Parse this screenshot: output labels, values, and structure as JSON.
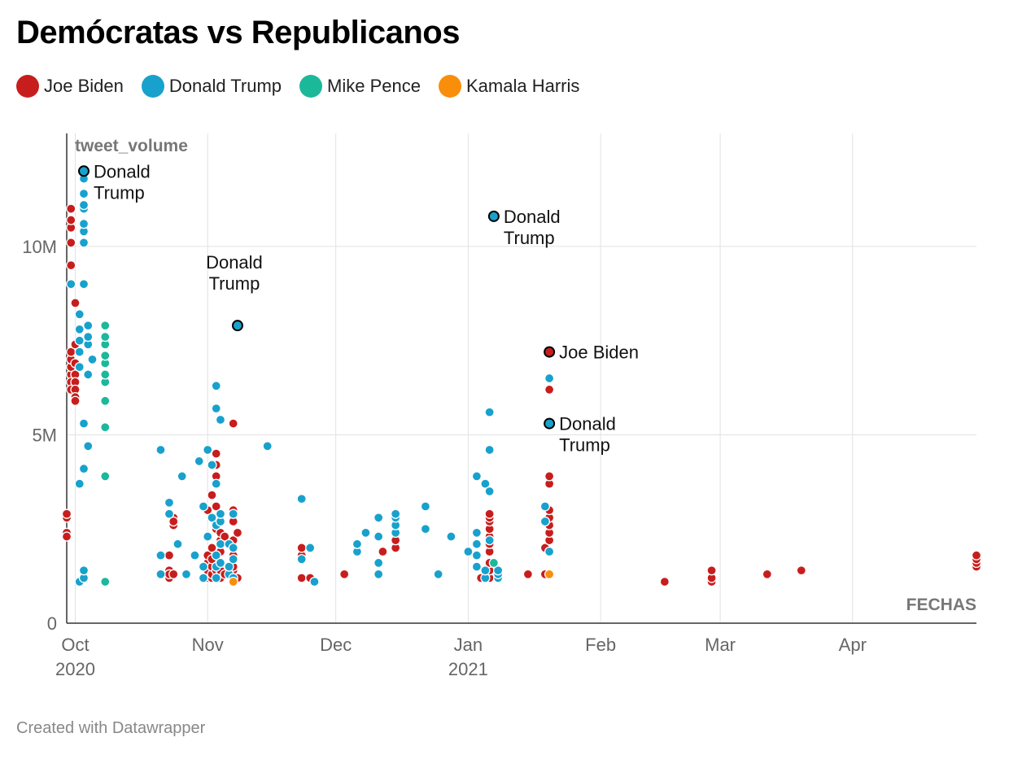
{
  "title": "Demócratas vs Republicanos",
  "footer": "Created with Datawrapper",
  "chart_data": {
    "type": "scatter",
    "xlabel": "FECHAS",
    "ylabel": "tweet_volume",
    "xlim": [
      "2020-09-29",
      "2021-04-30"
    ],
    "ylim": [
      0,
      13000000
    ],
    "grid": true,
    "legend_position": "top-left",
    "x_ticks": [
      {
        "date": "2020-10-01",
        "label": "Oct",
        "sub": "2020"
      },
      {
        "date": "2020-11-01",
        "label": "Nov",
        "sub": ""
      },
      {
        "date": "2020-12-01",
        "label": "Dec",
        "sub": ""
      },
      {
        "date": "2021-01-01",
        "label": "Jan",
        "sub": "2021"
      },
      {
        "date": "2021-02-01",
        "label": "Feb",
        "sub": ""
      },
      {
        "date": "2021-03-01",
        "label": "Mar",
        "sub": ""
      },
      {
        "date": "2021-04-01",
        "label": "Apr",
        "sub": ""
      }
    ],
    "y_ticks": [
      {
        "value": 0,
        "label": "0"
      },
      {
        "value": 5000000,
        "label": "5M"
      },
      {
        "value": 10000000,
        "label": "10M"
      }
    ],
    "series": [
      {
        "name": "Joe Biden",
        "color": "#c71e1d",
        "points": [
          [
            "2020-09-29",
            2400000
          ],
          [
            "2020-09-29",
            2300000
          ],
          [
            "2020-09-29",
            2800000
          ],
          [
            "2020-09-29",
            2900000
          ],
          [
            "2020-09-30",
            6600000
          ],
          [
            "2020-09-30",
            6800000
          ],
          [
            "2020-09-30",
            7000000
          ],
          [
            "2020-09-30",
            7200000
          ],
          [
            "2020-09-30",
            6400000
          ],
          [
            "2020-09-30",
            6200000
          ],
          [
            "2020-09-30",
            9500000
          ],
          [
            "2020-09-30",
            10100000
          ],
          [
            "2020-09-30",
            10500000
          ],
          [
            "2020-09-30",
            10700000
          ],
          [
            "2020-09-30",
            11000000
          ],
          [
            "2020-10-01",
            6900000
          ],
          [
            "2020-10-01",
            7400000
          ],
          [
            "2020-10-01",
            6600000
          ],
          [
            "2020-10-01",
            6400000
          ],
          [
            "2020-10-01",
            6200000
          ],
          [
            "2020-10-01",
            6000000
          ],
          [
            "2020-10-01",
            5900000
          ],
          [
            "2020-10-01",
            8500000
          ],
          [
            "2020-10-23",
            1800000
          ],
          [
            "2020-10-23",
            1400000
          ],
          [
            "2020-10-23",
            1200000
          ],
          [
            "2020-10-23",
            1300000
          ],
          [
            "2020-10-24",
            2600000
          ],
          [
            "2020-10-24",
            2800000
          ],
          [
            "2020-10-24",
            2700000
          ],
          [
            "2020-10-24",
            1300000
          ],
          [
            "2020-11-01",
            1200000
          ],
          [
            "2020-11-01",
            1400000
          ],
          [
            "2020-11-01",
            1600000
          ],
          [
            "2020-11-01",
            1800000
          ],
          [
            "2020-11-01",
            3000000
          ],
          [
            "2020-11-02",
            1200000
          ],
          [
            "2020-11-02",
            1300000
          ],
          [
            "2020-11-02",
            1500000
          ],
          [
            "2020-11-02",
            1700000
          ],
          [
            "2020-11-02",
            2000000
          ],
          [
            "2020-11-02",
            3400000
          ],
          [
            "2020-11-03",
            1400000
          ],
          [
            "2020-11-03",
            2500000
          ],
          [
            "2020-11-03",
            3100000
          ],
          [
            "2020-11-03",
            3900000
          ],
          [
            "2020-11-03",
            4200000
          ],
          [
            "2020-11-03",
            4500000
          ],
          [
            "2020-11-04",
            1200000
          ],
          [
            "2020-11-04",
            1400000
          ],
          [
            "2020-11-04",
            1600000
          ],
          [
            "2020-11-04",
            1900000
          ],
          [
            "2020-11-04",
            2200000
          ],
          [
            "2020-11-04",
            2400000
          ],
          [
            "2020-11-05",
            2300000
          ],
          [
            "2020-11-05",
            1300000
          ],
          [
            "2020-11-07",
            1400000
          ],
          [
            "2020-11-07",
            1500000
          ],
          [
            "2020-11-07",
            1800000
          ],
          [
            "2020-11-07",
            2200000
          ],
          [
            "2020-11-07",
            2700000
          ],
          [
            "2020-11-07",
            3000000
          ],
          [
            "2020-11-07",
            5300000
          ],
          [
            "2020-11-08",
            1200000
          ],
          [
            "2020-11-08",
            2400000
          ],
          [
            "2020-11-23",
            1200000
          ],
          [
            "2020-11-23",
            1800000
          ],
          [
            "2020-11-23",
            2000000
          ],
          [
            "2020-11-25",
            1200000
          ],
          [
            "2020-12-03",
            1300000
          ],
          [
            "2020-12-12",
            1900000
          ],
          [
            "2020-12-15",
            2000000
          ],
          [
            "2020-12-15",
            2200000
          ],
          [
            "2021-01-04",
            1200000
          ],
          [
            "2021-01-06",
            1200000
          ],
          [
            "2021-01-06",
            1400000
          ],
          [
            "2021-01-06",
            1600000
          ],
          [
            "2021-01-06",
            1900000
          ],
          [
            "2021-01-06",
            2100000
          ],
          [
            "2021-01-06",
            2300000
          ],
          [
            "2021-01-06",
            2500000
          ],
          [
            "2021-01-06",
            2700000
          ],
          [
            "2021-01-06",
            2800000
          ],
          [
            "2021-01-06",
            2900000
          ],
          [
            "2021-01-15",
            1300000
          ],
          [
            "2021-01-19",
            1300000
          ],
          [
            "2021-01-19",
            2000000
          ],
          [
            "2021-01-20",
            2200000
          ],
          [
            "2021-01-20",
            2400000
          ],
          [
            "2021-01-20",
            2600000
          ],
          [
            "2021-01-20",
            2800000
          ],
          [
            "2021-01-20",
            3000000
          ],
          [
            "2021-01-20",
            3700000
          ],
          [
            "2021-01-20",
            3900000
          ],
          [
            "2021-01-20",
            6200000
          ],
          [
            "2021-01-20",
            7200000
          ],
          [
            "2021-02-16",
            1100000
          ],
          [
            "2021-02-27",
            1100000
          ],
          [
            "2021-02-27",
            1200000
          ],
          [
            "2021-02-27",
            1400000
          ],
          [
            "2021-03-12",
            1300000
          ],
          [
            "2021-03-20",
            1400000
          ],
          [
            "2021-04-30",
            1500000
          ],
          [
            "2021-04-30",
            1600000
          ],
          [
            "2021-04-30",
            1700000
          ],
          [
            "2021-04-30",
            1800000
          ]
        ]
      },
      {
        "name": "Donald Trump",
        "color": "#18a1cd",
        "points": [
          [
            "2020-09-30",
            9000000
          ],
          [
            "2020-10-02",
            1100000
          ],
          [
            "2020-10-02",
            3700000
          ],
          [
            "2020-10-02",
            6800000
          ],
          [
            "2020-10-02",
            7200000
          ],
          [
            "2020-10-02",
            7500000
          ],
          [
            "2020-10-02",
            7800000
          ],
          [
            "2020-10-02",
            8200000
          ],
          [
            "2020-10-03",
            1200000
          ],
          [
            "2020-10-03",
            1400000
          ],
          [
            "2020-10-03",
            4100000
          ],
          [
            "2020-10-03",
            5300000
          ],
          [
            "2020-10-03",
            9000000
          ],
          [
            "2020-10-03",
            10100000
          ],
          [
            "2020-10-03",
            10400000
          ],
          [
            "2020-10-03",
            10600000
          ],
          [
            "2020-10-03",
            11000000
          ],
          [
            "2020-10-03",
            11100000
          ],
          [
            "2020-10-03",
            11400000
          ],
          [
            "2020-10-03",
            11800000
          ],
          [
            "2020-10-03",
            12000000
          ],
          [
            "2020-10-04",
            4700000
          ],
          [
            "2020-10-04",
            6600000
          ],
          [
            "2020-10-04",
            7400000
          ],
          [
            "2020-10-04",
            7600000
          ],
          [
            "2020-10-04",
            7900000
          ],
          [
            "2020-10-05",
            7000000
          ],
          [
            "2020-10-21",
            1300000
          ],
          [
            "2020-10-21",
            1800000
          ],
          [
            "2020-10-21",
            4600000
          ],
          [
            "2020-10-23",
            2900000
          ],
          [
            "2020-10-23",
            3200000
          ],
          [
            "2020-10-25",
            2100000
          ],
          [
            "2020-10-26",
            3900000
          ],
          [
            "2020-10-27",
            1300000
          ],
          [
            "2020-10-29",
            1800000
          ],
          [
            "2020-10-30",
            4300000
          ],
          [
            "2020-10-31",
            1200000
          ],
          [
            "2020-10-31",
            1500000
          ],
          [
            "2020-10-31",
            3100000
          ],
          [
            "2020-11-01",
            2300000
          ],
          [
            "2020-11-01",
            4600000
          ],
          [
            "2020-11-02",
            2800000
          ],
          [
            "2020-11-02",
            4200000
          ],
          [
            "2020-11-03",
            1200000
          ],
          [
            "2020-11-03",
            1500000
          ],
          [
            "2020-11-03",
            1800000
          ],
          [
            "2020-11-03",
            2600000
          ],
          [
            "2020-11-03",
            3700000
          ],
          [
            "2020-11-03",
            5700000
          ],
          [
            "2020-11-03",
            6300000
          ],
          [
            "2020-11-04",
            1600000
          ],
          [
            "2020-11-04",
            2100000
          ],
          [
            "2020-11-04",
            2700000
          ],
          [
            "2020-11-04",
            2900000
          ],
          [
            "2020-11-04",
            5400000
          ],
          [
            "2020-11-06",
            1300000
          ],
          [
            "2020-11-06",
            1500000
          ],
          [
            "2020-11-06",
            2100000
          ],
          [
            "2020-11-07",
            1200000
          ],
          [
            "2020-11-07",
            1700000
          ],
          [
            "2020-11-07",
            2000000
          ],
          [
            "2020-11-07",
            2900000
          ],
          [
            "2020-11-08",
            7900000
          ],
          [
            "2020-11-15",
            4700000
          ],
          [
            "2020-11-23",
            1700000
          ],
          [
            "2020-11-23",
            3300000
          ],
          [
            "2020-11-25",
            2000000
          ],
          [
            "2020-11-26",
            1100000
          ],
          [
            "2020-12-06",
            1900000
          ],
          [
            "2020-12-06",
            2100000
          ],
          [
            "2020-12-08",
            2400000
          ],
          [
            "2020-12-11",
            1300000
          ],
          [
            "2020-12-11",
            1600000
          ],
          [
            "2020-12-11",
            2300000
          ],
          [
            "2020-12-11",
            2800000
          ],
          [
            "2020-12-15",
            2400000
          ],
          [
            "2020-12-15",
            2600000
          ],
          [
            "2020-12-15",
            2800000
          ],
          [
            "2020-12-15",
            2900000
          ],
          [
            "2020-12-22",
            2500000
          ],
          [
            "2020-12-22",
            3100000
          ],
          [
            "2020-12-25",
            1300000
          ],
          [
            "2020-12-28",
            2300000
          ],
          [
            "2021-01-01",
            1900000
          ],
          [
            "2021-01-03",
            1500000
          ],
          [
            "2021-01-03",
            1800000
          ],
          [
            "2021-01-03",
            2100000
          ],
          [
            "2021-01-03",
            2400000
          ],
          [
            "2021-01-03",
            3900000
          ],
          [
            "2021-01-05",
            1200000
          ],
          [
            "2021-01-05",
            1400000
          ],
          [
            "2021-01-05",
            3700000
          ],
          [
            "2021-01-06",
            2200000
          ],
          [
            "2021-01-06",
            3500000
          ],
          [
            "2021-01-06",
            4600000
          ],
          [
            "2021-01-06",
            5600000
          ],
          [
            "2021-01-07",
            10800000
          ],
          [
            "2021-01-08",
            1200000
          ],
          [
            "2021-01-08",
            1300000
          ],
          [
            "2021-01-08",
            1400000
          ],
          [
            "2021-01-19",
            2700000
          ],
          [
            "2021-01-19",
            3100000
          ],
          [
            "2021-01-20",
            1900000
          ],
          [
            "2021-01-20",
            5300000
          ],
          [
            "2021-01-20",
            6500000
          ]
        ]
      },
      {
        "name": "Mike Pence",
        "color": "#1bb89a",
        "points": [
          [
            "2020-10-08",
            1100000
          ],
          [
            "2020-10-08",
            3900000
          ],
          [
            "2020-10-08",
            5200000
          ],
          [
            "2020-10-08",
            5900000
          ],
          [
            "2020-10-08",
            6400000
          ],
          [
            "2020-10-08",
            6600000
          ],
          [
            "2020-10-08",
            6900000
          ],
          [
            "2020-10-08",
            7100000
          ],
          [
            "2020-10-08",
            7400000
          ],
          [
            "2020-10-08",
            7600000
          ],
          [
            "2020-10-08",
            7900000
          ],
          [
            "2021-01-07",
            1600000
          ]
        ]
      },
      {
        "name": "Kamala Harris",
        "color": "#f98e0b",
        "points": [
          [
            "2020-11-07",
            1100000
          ],
          [
            "2021-01-20",
            1300000
          ]
        ]
      }
    ],
    "annotations": [
      {
        "series": "Donald Trump",
        "date": "2020-10-03",
        "value": 12000000,
        "lines": [
          "Donald",
          "Trump"
        ],
        "position": "right"
      },
      {
        "series": "Donald Trump",
        "date": "2020-11-08",
        "value": 7900000,
        "lines": [
          "Donald",
          "Trump"
        ],
        "position": "above"
      },
      {
        "series": "Donald Trump",
        "date": "2021-01-07",
        "value": 10800000,
        "lines": [
          "Donald",
          "Trump"
        ],
        "position": "right"
      },
      {
        "series": "Joe Biden",
        "date": "2021-01-20",
        "value": 7200000,
        "lines": [
          "Joe Biden"
        ],
        "position": "right"
      },
      {
        "series": "Donald Trump",
        "date": "2021-01-20",
        "value": 5300000,
        "lines": [
          "Donald",
          "Trump"
        ],
        "position": "right"
      }
    ]
  }
}
